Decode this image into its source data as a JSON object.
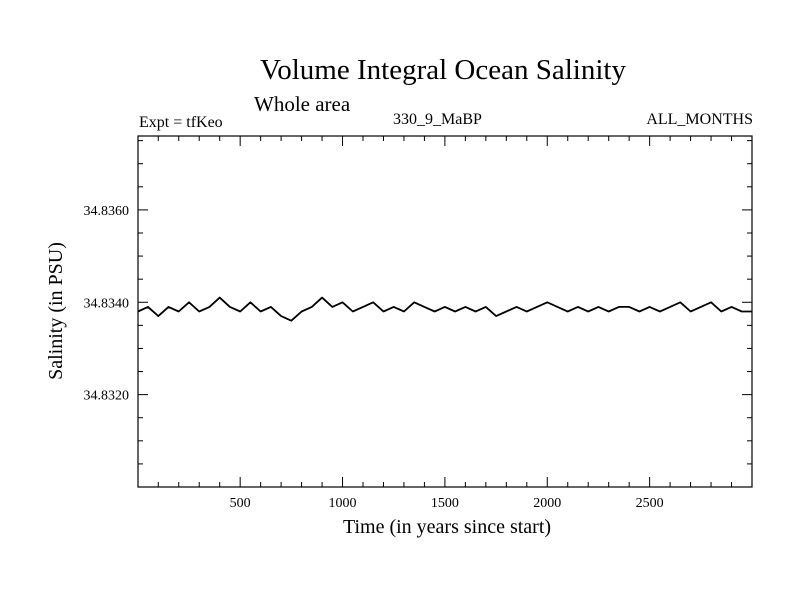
{
  "header": {
    "title": "Volume Integral Ocean Salinity",
    "subtitle": "Whole area",
    "expt_label": "Expt = tfKeo",
    "run_label": "330_9_MaBP",
    "period_label": "ALL_MONTHS"
  },
  "chart_data": {
    "type": "line",
    "title": "Volume Integral Ocean Salinity",
    "subtitle": "Whole area",
    "xlabel": "Time (in years since start)",
    "ylabel": "Salinity (in PSU)",
    "xlim": [
      1,
      3000
    ],
    "ylim": [
      34.83,
      34.8376
    ],
    "x_ticks": [
      500,
      1000,
      1500,
      2000,
      2500
    ],
    "x_tick_labels": [
      "500",
      "1000",
      "1500",
      "2000",
      "2500"
    ],
    "y_ticks": [
      34.832,
      34.834,
      34.836
    ],
    "y_tick_labels": [
      "34.8320",
      "34.8340",
      "34.8360"
    ],
    "grid": false,
    "series": [
      {
        "color": "#000000",
        "x": [
          1,
          50,
          100,
          150,
          200,
          250,
          300,
          350,
          400,
          450,
          500,
          550,
          600,
          650,
          700,
          750,
          800,
          850,
          900,
          950,
          1000,
          1050,
          1100,
          1150,
          1200,
          1250,
          1300,
          1350,
          1400,
          1450,
          1500,
          1550,
          1600,
          1650,
          1700,
          1750,
          1800,
          1850,
          1900,
          1950,
          2000,
          2050,
          2100,
          2150,
          2200,
          2250,
          2300,
          2350,
          2400,
          2450,
          2500,
          2550,
          2600,
          2650,
          2700,
          2750,
          2800,
          2850,
          2900,
          2950,
          3000
        ],
        "values": [
          34.8338,
          34.8339,
          34.8337,
          34.8339,
          34.8338,
          34.834,
          34.8338,
          34.8339,
          34.8341,
          34.8339,
          34.8338,
          34.834,
          34.8338,
          34.8339,
          34.8337,
          34.8336,
          34.8338,
          34.8339,
          34.8341,
          34.8339,
          34.834,
          34.8338,
          34.8339,
          34.834,
          34.8338,
          34.8339,
          34.8338,
          34.834,
          34.8339,
          34.8338,
          34.8339,
          34.8338,
          34.8339,
          34.8338,
          34.8339,
          34.8337,
          34.8338,
          34.8339,
          34.8338,
          34.8339,
          34.834,
          34.8339,
          34.8338,
          34.8339,
          34.8338,
          34.8339,
          34.8338,
          34.8339,
          34.8339,
          34.8338,
          34.8339,
          34.8338,
          34.8339,
          34.834,
          34.8338,
          34.8339,
          34.834,
          34.8338,
          34.8339,
          34.8338,
          34.8338
        ]
      }
    ]
  }
}
